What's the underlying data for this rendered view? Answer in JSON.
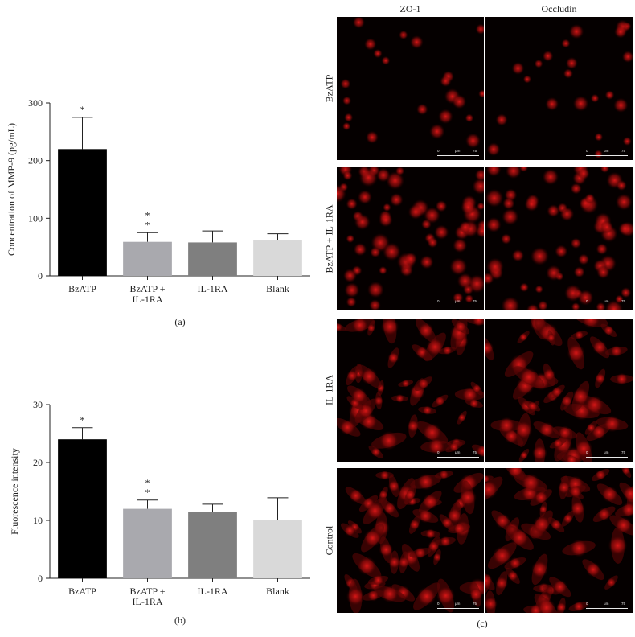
{
  "chart_data": [
    {
      "panel": "(a)",
      "type": "bar",
      "ylabel": "Concentration of MMP-9 (pg/mL)",
      "ylim": [
        0,
        300
      ],
      "yticks": [
        0,
        100,
        200,
        300
      ],
      "categories": [
        [
          "BzATP"
        ],
        [
          "BzATP +",
          "IL-1RA"
        ],
        [
          "IL-1RA"
        ],
        [
          "Blank"
        ]
      ],
      "values": [
        220,
        59,
        58,
        62
      ],
      "errors": [
        55,
        16,
        20,
        11
      ],
      "significance": [
        "*",
        "**",
        "",
        ""
      ],
      "colors": [
        "#000000",
        "#a9a9ae",
        "#7f7f7f",
        "#d9d9d9"
      ]
    },
    {
      "panel": "(b)",
      "type": "bar",
      "ylabel": "Fluorescence intensity",
      "ylim": [
        0,
        30
      ],
      "yticks": [
        0,
        10,
        20,
        30
      ],
      "categories": [
        [
          "BzATP"
        ],
        [
          "BzATP +",
          "IL-1RA"
        ],
        [
          "IL-1RA"
        ],
        [
          "Blank"
        ]
      ],
      "values": [
        24,
        12,
        11.5,
        10.1
      ],
      "errors": [
        2,
        1.5,
        1.3,
        3.8
      ],
      "significance": [
        "*",
        "**",
        "",
        ""
      ],
      "colors": [
        "#000000",
        "#a9a9ae",
        "#7f7f7f",
        "#d9d9d9"
      ]
    }
  ],
  "micrographs": {
    "panel": "(c)",
    "columns": [
      "ZO-1",
      "Occludin"
    ],
    "rows": [
      "BzATP",
      "BzATP + IL-1RA",
      "IL-1RA",
      "Control"
    ],
    "scale_labels": {
      "start": "0",
      "unit": "μm",
      "end": "75"
    },
    "stain_color": "#cc1010"
  }
}
